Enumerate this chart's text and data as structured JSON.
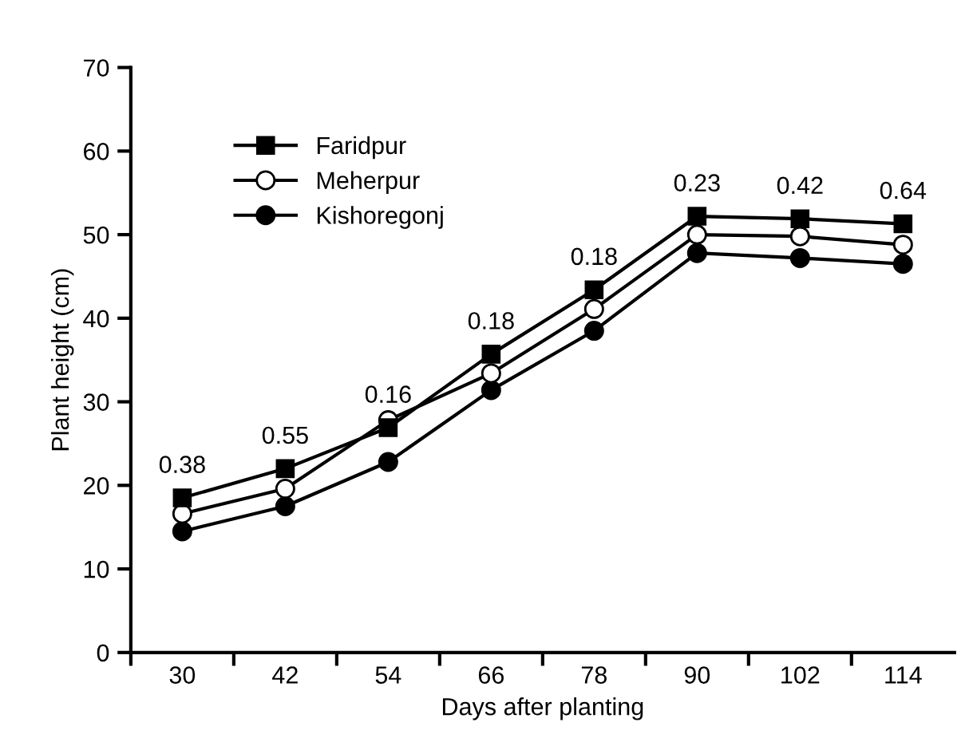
{
  "chart_data": {
    "type": "line",
    "xlabel": "Days after planting",
    "ylabel": "Plant height (cm)",
    "categories": [
      "30",
      "42",
      "54",
      "66",
      "78",
      "90",
      "102",
      "114"
    ],
    "series": [
      {
        "name": "Faridpur",
        "color": "#000000",
        "marker": "square",
        "values": [
          18.5,
          22.0,
          26.9,
          35.7,
          43.4,
          52.2,
          51.9,
          51.3
        ]
      },
      {
        "name": "Meherpur",
        "color": "#ffffff",
        "marker": "circle",
        "values": [
          16.6,
          19.6,
          27.8,
          33.4,
          41.1,
          50.0,
          49.8,
          48.8
        ]
      },
      {
        "name": "Kishoregonj",
        "color": "#000000",
        "marker": "circle",
        "values": [
          14.5,
          17.5,
          22.8,
          31.4,
          38.5,
          47.8,
          47.2,
          46.5
        ]
      }
    ],
    "annotations": [
      {
        "text": "0.38",
        "x": "30",
        "y": 18.5
      },
      {
        "text": "0.55",
        "x": "42",
        "y": 22.0
      },
      {
        "text": "0.16",
        "x": "54",
        "y": 26.9
      },
      {
        "text": "0.18",
        "x": "66",
        "y": 35.7
      },
      {
        "text": "0.18",
        "x": "78",
        "y": 43.4
      },
      {
        "text": "0.23",
        "x": "90",
        "y": 52.2
      },
      {
        "text": "0.42",
        "x": "102",
        "y": 51.9
      },
      {
        "text": "0.64",
        "x": "114",
        "y": 51.3
      }
    ],
    "ylim": [
      0,
      70
    ],
    "yticks": [
      0,
      10,
      20,
      30,
      40,
      50,
      60,
      70
    ],
    "grid": false,
    "legend": "top left",
    "line_style": "solid"
  }
}
